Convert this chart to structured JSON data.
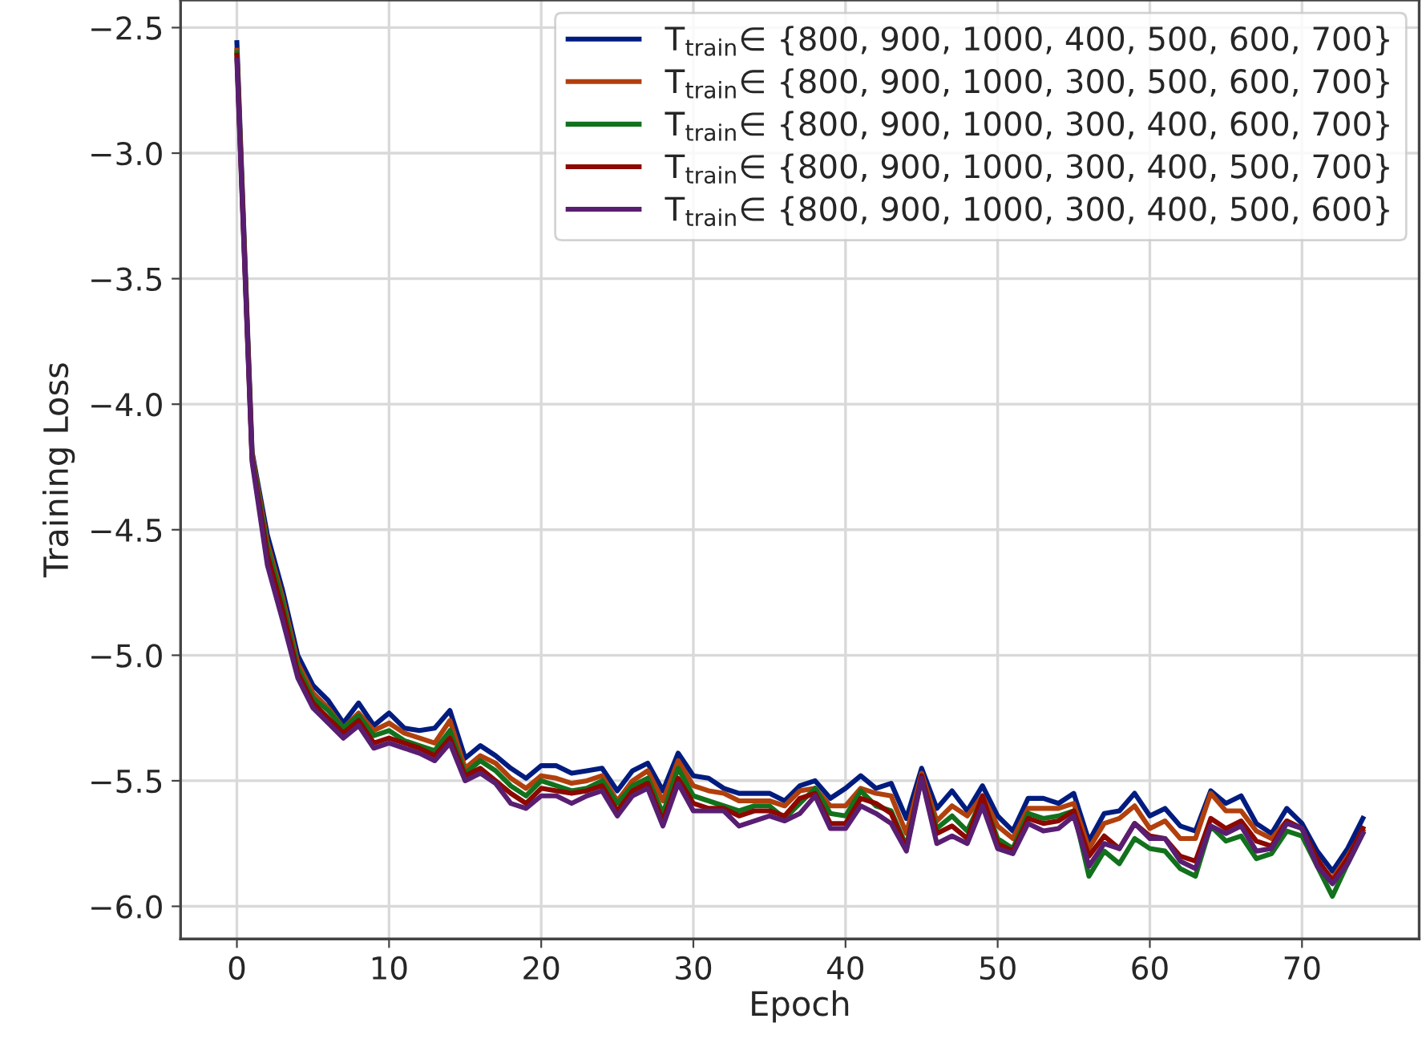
{
  "chart_data": {
    "type": "line",
    "xlabel": "Epoch",
    "ylabel": "Training Loss",
    "x": [
      0,
      1,
      2,
      3,
      4,
      5,
      6,
      7,
      8,
      9,
      10,
      11,
      12,
      13,
      14,
      15,
      16,
      17,
      18,
      19,
      20,
      21,
      22,
      23,
      24,
      25,
      26,
      27,
      28,
      29,
      30,
      31,
      32,
      33,
      34,
      35,
      36,
      37,
      38,
      39,
      40,
      41,
      42,
      43,
      44,
      45,
      46,
      47,
      48,
      49,
      50,
      51,
      52,
      53,
      54,
      55,
      56,
      57,
      58,
      59,
      60,
      61,
      62,
      63,
      64,
      65,
      66,
      67,
      68,
      69,
      70,
      71,
      72,
      73,
      74
    ],
    "xlim": [
      -3.7,
      77.7
    ],
    "xticks": [
      0,
      10,
      20,
      30,
      40,
      50,
      60,
      70
    ],
    "ylim": [
      -6.13,
      -2.39
    ],
    "yticks": [
      {
        "value": -6.0,
        "label": "−6.0"
      },
      {
        "value": -5.5,
        "label": "−5.5"
      },
      {
        "value": -5.0,
        "label": "−5.0"
      },
      {
        "value": -4.5,
        "label": "−4.5"
      },
      {
        "value": -4.0,
        "label": "−4.0"
      },
      {
        "value": -3.5,
        "label": "−3.5"
      },
      {
        "value": -3.0,
        "label": "−3.0"
      },
      {
        "value": -2.5,
        "label": "−2.5"
      }
    ],
    "grid": true,
    "legend": "top right",
    "marker": "none",
    "line_style": "solid",
    "series": [
      {
        "name": "T$_{train}$∈ {800, 900, 1000, 400, 500, 600, 700}",
        "color": "#001c7f",
        "values": [
          -2.56,
          -4.19,
          -4.52,
          -4.74,
          -5.0,
          -5.12,
          -5.18,
          -5.27,
          -5.19,
          -5.28,
          -5.23,
          -5.29,
          -5.3,
          -5.29,
          -5.22,
          -5.41,
          -5.36,
          -5.4,
          -5.45,
          -5.49,
          -5.44,
          -5.44,
          -5.47,
          -5.46,
          -5.45,
          -5.54,
          -5.46,
          -5.43,
          -5.54,
          -5.39,
          -5.48,
          -5.49,
          -5.53,
          -5.55,
          -5.55,
          -5.55,
          -5.58,
          -5.52,
          -5.5,
          -5.57,
          -5.53,
          -5.48,
          -5.53,
          -5.51,
          -5.65,
          -5.45,
          -5.61,
          -5.54,
          -5.62,
          -5.52,
          -5.64,
          -5.7,
          -5.57,
          -5.57,
          -5.59,
          -5.55,
          -5.74,
          -5.63,
          -5.62,
          -5.55,
          -5.64,
          -5.61,
          -5.68,
          -5.7,
          -5.54,
          -5.59,
          -5.56,
          -5.67,
          -5.71,
          -5.61,
          -5.67,
          -5.78,
          -5.86,
          -5.77,
          -5.65
        ]
      },
      {
        "name": "T$_{train}$∈ {800, 900, 1000, 300, 500, 600, 700}",
        "color": "#b1400d",
        "values": [
          -2.59,
          -4.2,
          -4.55,
          -4.77,
          -5.03,
          -5.15,
          -5.21,
          -5.29,
          -5.23,
          -5.3,
          -5.27,
          -5.31,
          -5.33,
          -5.35,
          -5.26,
          -5.45,
          -5.4,
          -5.43,
          -5.49,
          -5.53,
          -5.48,
          -5.49,
          -5.51,
          -5.5,
          -5.48,
          -5.58,
          -5.5,
          -5.46,
          -5.58,
          -5.42,
          -5.52,
          -5.54,
          -5.55,
          -5.58,
          -5.58,
          -5.58,
          -5.6,
          -5.54,
          -5.53,
          -5.6,
          -5.6,
          -5.53,
          -5.55,
          -5.56,
          -5.71,
          -5.47,
          -5.66,
          -5.6,
          -5.64,
          -5.56,
          -5.68,
          -5.73,
          -5.61,
          -5.61,
          -5.61,
          -5.59,
          -5.77,
          -5.67,
          -5.65,
          -5.6,
          -5.69,
          -5.66,
          -5.73,
          -5.73,
          -5.55,
          -5.62,
          -5.62,
          -5.7,
          -5.73,
          -5.66,
          -5.69,
          -5.82,
          -5.89,
          -5.8,
          -5.7
        ]
      },
      {
        "name": "T$_{train}$∈ {800, 900, 1000, 300, 400, 600, 700}",
        "color": "#12711c",
        "values": [
          -2.6,
          -4.21,
          -4.57,
          -4.79,
          -5.05,
          -5.17,
          -5.22,
          -5.29,
          -5.24,
          -5.32,
          -5.3,
          -5.34,
          -5.36,
          -5.38,
          -5.3,
          -5.47,
          -5.42,
          -5.46,
          -5.52,
          -5.56,
          -5.5,
          -5.52,
          -5.54,
          -5.53,
          -5.5,
          -5.59,
          -5.52,
          -5.49,
          -5.63,
          -5.45,
          -5.56,
          -5.58,
          -5.6,
          -5.62,
          -5.6,
          -5.6,
          -5.65,
          -5.59,
          -5.53,
          -5.63,
          -5.64,
          -5.54,
          -5.6,
          -5.62,
          -5.76,
          -5.49,
          -5.69,
          -5.64,
          -5.7,
          -5.57,
          -5.73,
          -5.77,
          -5.63,
          -5.65,
          -5.64,
          -5.62,
          -5.88,
          -5.78,
          -5.83,
          -5.73,
          -5.77,
          -5.78,
          -5.85,
          -5.88,
          -5.68,
          -5.74,
          -5.72,
          -5.81,
          -5.79,
          -5.7,
          -5.72,
          -5.84,
          -5.96,
          -5.83,
          -5.71
        ]
      },
      {
        "name": "T$_{train}$∈ {800, 900, 1000, 300, 400, 500, 700}",
        "color": "#8c0800",
        "values": [
          -2.61,
          -4.22,
          -4.6,
          -4.82,
          -5.07,
          -5.19,
          -5.25,
          -5.31,
          -5.26,
          -5.35,
          -5.33,
          -5.35,
          -5.37,
          -5.4,
          -5.33,
          -5.48,
          -5.45,
          -5.5,
          -5.55,
          -5.59,
          -5.53,
          -5.54,
          -5.55,
          -5.54,
          -5.52,
          -5.62,
          -5.54,
          -5.51,
          -5.66,
          -5.49,
          -5.59,
          -5.61,
          -5.61,
          -5.64,
          -5.62,
          -5.62,
          -5.64,
          -5.57,
          -5.55,
          -5.67,
          -5.67,
          -5.57,
          -5.59,
          -5.63,
          -5.77,
          -5.48,
          -5.71,
          -5.68,
          -5.73,
          -5.56,
          -5.75,
          -5.78,
          -5.65,
          -5.67,
          -5.66,
          -5.62,
          -5.8,
          -5.72,
          -5.77,
          -5.67,
          -5.72,
          -5.73,
          -5.8,
          -5.82,
          -5.65,
          -5.69,
          -5.66,
          -5.74,
          -5.76,
          -5.66,
          -5.69,
          -5.81,
          -5.9,
          -5.81,
          -5.69
        ]
      },
      {
        "name": "T$_{train}$∈ {800, 900, 1000, 300, 400, 500, 600}",
        "color": "#591e71",
        "values": [
          -2.63,
          -4.23,
          -4.64,
          -4.86,
          -5.09,
          -5.21,
          -5.27,
          -5.33,
          -5.28,
          -5.37,
          -5.35,
          -5.37,
          -5.39,
          -5.42,
          -5.35,
          -5.5,
          -5.47,
          -5.51,
          -5.59,
          -5.61,
          -5.56,
          -5.56,
          -5.59,
          -5.56,
          -5.54,
          -5.64,
          -5.56,
          -5.53,
          -5.68,
          -5.51,
          -5.62,
          -5.62,
          -5.62,
          -5.68,
          -5.66,
          -5.64,
          -5.66,
          -5.63,
          -5.56,
          -5.69,
          -5.69,
          -5.6,
          -5.63,
          -5.67,
          -5.78,
          -5.49,
          -5.75,
          -5.72,
          -5.75,
          -5.6,
          -5.77,
          -5.79,
          -5.67,
          -5.7,
          -5.69,
          -5.64,
          -5.84,
          -5.75,
          -5.77,
          -5.67,
          -5.73,
          -5.73,
          -5.82,
          -5.85,
          -5.68,
          -5.71,
          -5.68,
          -5.78,
          -5.77,
          -5.67,
          -5.69,
          -5.84,
          -5.91,
          -5.83,
          -5.71
        ]
      }
    ]
  }
}
